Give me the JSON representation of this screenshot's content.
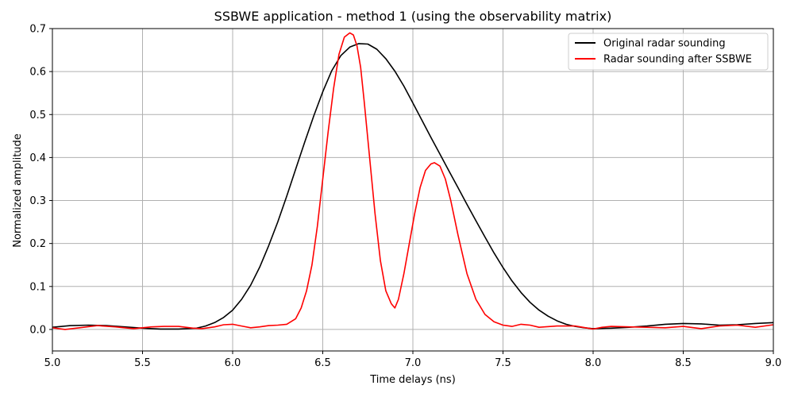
{
  "chart_data": {
    "type": "line",
    "title": "SSBWE application - method 1 (using the observability matrix)",
    "xlabel": "Time delays (ns)",
    "ylabel": "Normalized amplitude",
    "xlim": [
      5.0,
      9.0
    ],
    "ylim": [
      -0.05,
      0.7
    ],
    "xticks": [
      "5.0",
      "5.5",
      "6.0",
      "6.5",
      "7.0",
      "7.5",
      "8.0",
      "8.5",
      "9.0"
    ],
    "yticks": [
      "0.0",
      "0.1",
      "0.2",
      "0.3",
      "0.4",
      "0.5",
      "0.6",
      "0.7"
    ],
    "grid": true,
    "legend_position": "top-right",
    "series": [
      {
        "name": "Original radar sounding",
        "color": "#000000",
        "x": [
          5.0,
          5.1,
          5.2,
          5.3,
          5.4,
          5.5,
          5.6,
          5.7,
          5.8,
          5.85,
          5.9,
          5.95,
          6.0,
          6.05,
          6.1,
          6.15,
          6.2,
          6.25,
          6.3,
          6.35,
          6.4,
          6.45,
          6.5,
          6.55,
          6.6,
          6.65,
          6.7,
          6.75,
          6.8,
          6.85,
          6.9,
          6.95,
          7.0,
          7.05,
          7.1,
          7.15,
          7.2,
          7.25,
          7.3,
          7.35,
          7.4,
          7.45,
          7.5,
          7.55,
          7.6,
          7.65,
          7.7,
          7.75,
          7.8,
          7.85,
          7.9,
          7.95,
          8.0,
          8.1,
          8.2,
          8.3,
          8.4,
          8.5,
          8.6,
          8.7,
          8.8,
          8.9,
          9.0
        ],
        "y": [
          0.005,
          0.009,
          0.01,
          0.009,
          0.006,
          0.003,
          0.001,
          0.001,
          0.003,
          0.008,
          0.016,
          0.028,
          0.045,
          0.07,
          0.103,
          0.145,
          0.195,
          0.25,
          0.31,
          0.373,
          0.436,
          0.497,
          0.553,
          0.602,
          0.637,
          0.657,
          0.665,
          0.664,
          0.652,
          0.63,
          0.601,
          0.566,
          0.527,
          0.487,
          0.447,
          0.408,
          0.369,
          0.33,
          0.291,
          0.253,
          0.215,
          0.178,
          0.144,
          0.113,
          0.086,
          0.063,
          0.045,
          0.031,
          0.02,
          0.012,
          0.007,
          0.004,
          0.002,
          0.003,
          0.005,
          0.008,
          0.012,
          0.014,
          0.013,
          0.01,
          0.011,
          0.014,
          0.016
        ]
      },
      {
        "name": "Radar sounding after SSBWE",
        "color": "#ff0000",
        "x": [
          5.0,
          5.07,
          5.15,
          5.25,
          5.35,
          5.45,
          5.55,
          5.62,
          5.7,
          5.78,
          5.83,
          5.9,
          5.95,
          6.0,
          6.05,
          6.1,
          6.15,
          6.2,
          6.25,
          6.3,
          6.35,
          6.38,
          6.41,
          6.44,
          6.47,
          6.5,
          6.53,
          6.56,
          6.59,
          6.62,
          6.65,
          6.67,
          6.69,
          6.71,
          6.73,
          6.76,
          6.79,
          6.82,
          6.85,
          6.88,
          6.9,
          6.92,
          6.95,
          6.98,
          7.01,
          7.04,
          7.07,
          7.1,
          7.12,
          7.15,
          7.18,
          7.21,
          7.25,
          7.3,
          7.35,
          7.4,
          7.45,
          7.5,
          7.55,
          7.6,
          7.65,
          7.7,
          7.8,
          7.9,
          8.0,
          8.05,
          8.1,
          8.2,
          8.3,
          8.4,
          8.5,
          8.6,
          8.7,
          8.8,
          8.9,
          9.0
        ],
        "y": [
          0.004,
          0.0,
          0.004,
          0.009,
          0.006,
          0.002,
          0.006,
          0.007,
          0.007,
          0.003,
          0.002,
          0.006,
          0.011,
          0.012,
          0.008,
          0.004,
          0.006,
          0.009,
          0.01,
          0.012,
          0.025,
          0.05,
          0.09,
          0.15,
          0.24,
          0.35,
          0.46,
          0.56,
          0.64,
          0.68,
          0.69,
          0.685,
          0.66,
          0.61,
          0.53,
          0.4,
          0.27,
          0.16,
          0.09,
          0.06,
          0.05,
          0.07,
          0.13,
          0.2,
          0.27,
          0.33,
          0.37,
          0.385,
          0.388,
          0.38,
          0.35,
          0.3,
          0.22,
          0.13,
          0.07,
          0.035,
          0.018,
          0.01,
          0.007,
          0.012,
          0.01,
          0.005,
          0.008,
          0.008,
          0.001,
          0.005,
          0.007,
          0.006,
          0.005,
          0.004,
          0.007,
          0.002,
          0.008,
          0.01,
          0.005,
          0.011
        ]
      }
    ]
  }
}
